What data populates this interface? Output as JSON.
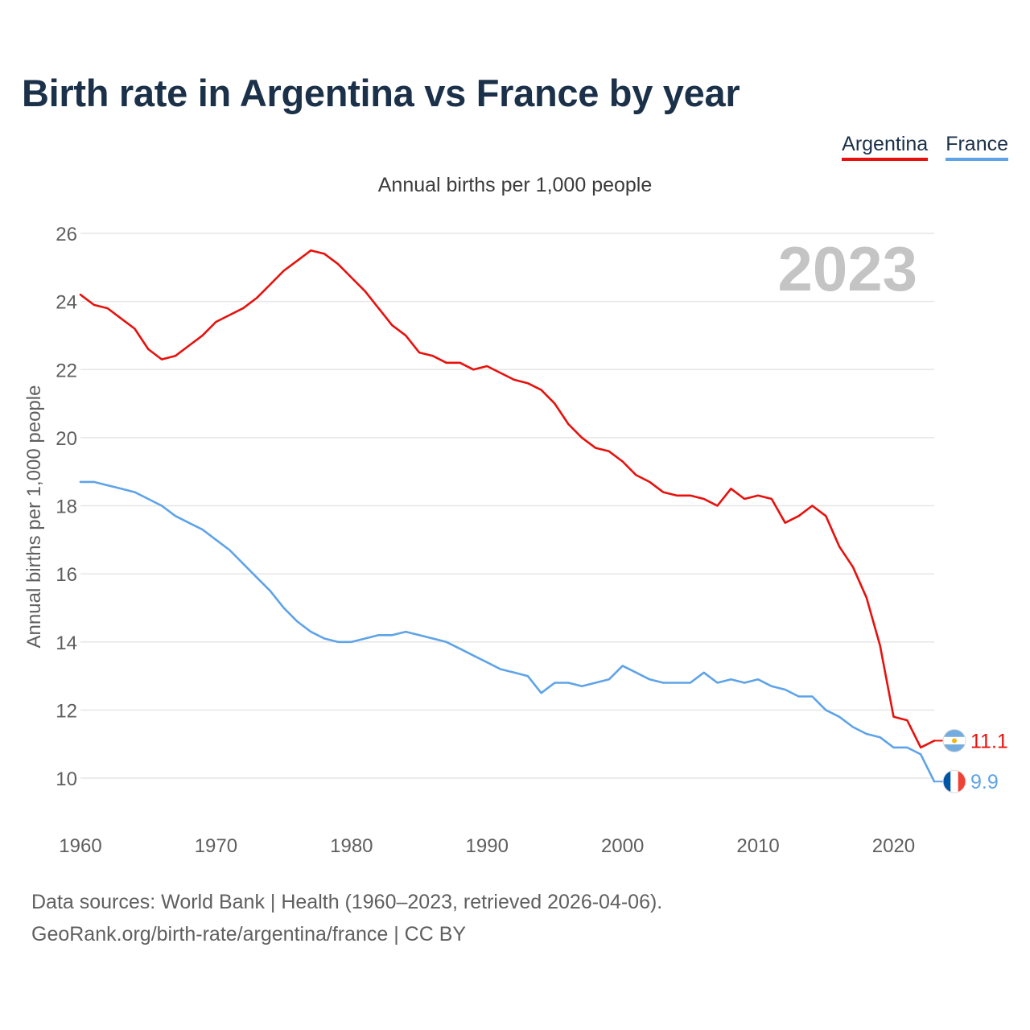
{
  "title": "Birth rate in Argentina vs France by year",
  "subtitle": "Annual births per 1,000 people",
  "legend": [
    {
      "label": "Argentina",
      "color": "#e8100c"
    },
    {
      "label": "France",
      "color": "#5ea3e8"
    }
  ],
  "footer": {
    "sources": "Data sources: World Bank | Health (1960–2023, retrieved 2026-04-06).",
    "credit": "GeoRank.org/birth-rate/argentina/france | CC BY"
  },
  "chart_data": {
    "type": "line",
    "title": "Birth rate in Argentina vs France by year",
    "subtitle": "Annual births per 1,000 people",
    "xlabel": "",
    "ylabel": "Annual births per 1,000 people",
    "xlim": [
      1960,
      2023
    ],
    "ylim": [
      9,
      26.5
    ],
    "x_ticks": [
      1960,
      1970,
      1980,
      1990,
      2000,
      2010,
      2020
    ],
    "y_ticks": [
      10,
      12,
      14,
      16,
      18,
      20,
      22,
      24,
      26
    ],
    "grid": true,
    "year_watermark": "2023",
    "x": [
      1960,
      1961,
      1962,
      1963,
      1964,
      1965,
      1966,
      1967,
      1968,
      1969,
      1970,
      1971,
      1972,
      1973,
      1974,
      1975,
      1976,
      1977,
      1978,
      1979,
      1980,
      1981,
      1982,
      1983,
      1984,
      1985,
      1986,
      1987,
      1988,
      1989,
      1990,
      1991,
      1992,
      1993,
      1994,
      1995,
      1996,
      1997,
      1998,
      1999,
      2000,
      2001,
      2002,
      2003,
      2004,
      2005,
      2006,
      2007,
      2008,
      2009,
      2010,
      2011,
      2012,
      2013,
      2014,
      2015,
      2016,
      2017,
      2018,
      2019,
      2020,
      2021,
      2022,
      2023
    ],
    "series": [
      {
        "name": "Argentina",
        "color": "#e8100c",
        "end_label": "11.1",
        "values": [
          24.2,
          23.9,
          23.8,
          23.5,
          23.2,
          22.6,
          22.3,
          22.4,
          22.7,
          23.0,
          23.4,
          23.6,
          23.8,
          24.1,
          24.5,
          24.9,
          25.2,
          25.5,
          25.4,
          25.1,
          24.7,
          24.3,
          23.8,
          23.3,
          23.0,
          22.5,
          22.4,
          22.2,
          22.2,
          22.0,
          22.1,
          21.9,
          21.7,
          21.6,
          21.4,
          21.0,
          20.4,
          20.0,
          19.7,
          19.6,
          19.3,
          18.9,
          18.7,
          18.4,
          18.3,
          18.3,
          18.2,
          18.0,
          18.5,
          18.2,
          18.3,
          18.2,
          17.5,
          17.7,
          18.0,
          17.7,
          16.8,
          16.2,
          15.3,
          13.9,
          11.8,
          11.7,
          10.9,
          11.1
        ]
      },
      {
        "name": "France",
        "color": "#5ea3e8",
        "end_label": "9.9",
        "values": [
          18.7,
          18.7,
          18.6,
          18.5,
          18.4,
          18.2,
          18.0,
          17.7,
          17.5,
          17.3,
          17.0,
          16.7,
          16.3,
          15.9,
          15.5,
          15.0,
          14.6,
          14.3,
          14.1,
          14.0,
          14.0,
          14.1,
          14.2,
          14.2,
          14.3,
          14.2,
          14.1,
          14.0,
          13.8,
          13.6,
          13.4,
          13.2,
          13.1,
          13.0,
          12.5,
          12.8,
          12.8,
          12.7,
          12.8,
          12.9,
          13.3,
          13.1,
          12.9,
          12.8,
          12.8,
          12.8,
          13.1,
          12.8,
          12.9,
          12.8,
          12.9,
          12.7,
          12.6,
          12.4,
          12.4,
          12.0,
          11.8,
          11.5,
          11.3,
          11.2,
          10.9,
          10.9,
          10.7,
          9.9
        ]
      }
    ]
  }
}
